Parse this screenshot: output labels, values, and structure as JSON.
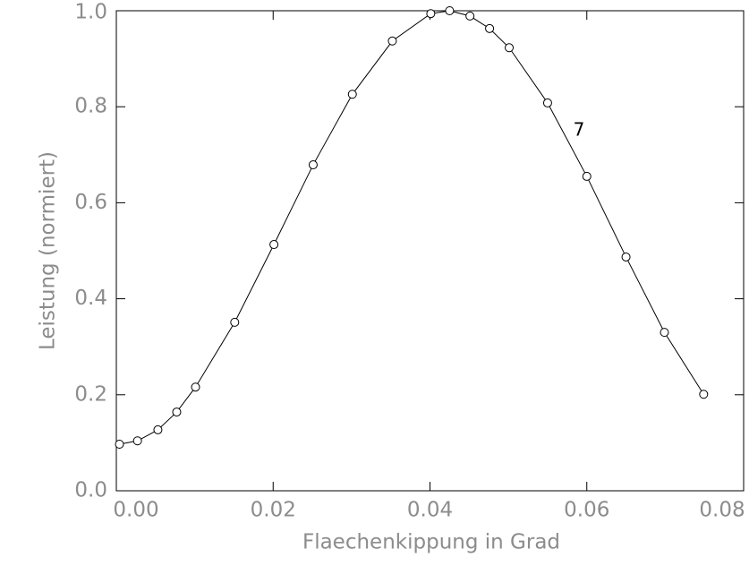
{
  "chart_data": {
    "type": "line",
    "xlabel": "Flaechenkippung in Grad",
    "ylabel": "Leistung (normiert)",
    "annotation": "7",
    "xlim": [
      0,
      0.08
    ],
    "ylim": [
      0,
      1
    ],
    "xticks": [
      {
        "value": 0,
        "label": "0.00"
      },
      {
        "value": 0.02,
        "label": "0.02"
      },
      {
        "value": 0.04,
        "label": "0.04"
      },
      {
        "value": 0.06,
        "label": "0.06"
      },
      {
        "value": 0.08,
        "label": "0.08"
      }
    ],
    "yticks": [
      {
        "value": 0,
        "label": "0.0"
      },
      {
        "value": 0.2,
        "label": "0.2"
      },
      {
        "value": 0.4,
        "label": "0.4"
      },
      {
        "value": 0.6,
        "label": "0.6"
      },
      {
        "value": 0.8,
        "label": "0.8"
      },
      {
        "value": 1,
        "label": "1.0"
      }
    ],
    "color": "#000000",
    "x": [
      0.0004,
      0.0027,
      0.0053,
      0.0077,
      0.0101,
      0.0151,
      0.0201,
      0.0251,
      0.0301,
      0.0352,
      0.0401,
      0.0425,
      0.0451,
      0.0476,
      0.0501,
      0.055,
      0.06,
      0.065,
      0.0699,
      0.0749
    ],
    "values": [
      0.097,
      0.104,
      0.127,
      0.164,
      0.216,
      0.351,
      0.513,
      0.679,
      0.826,
      0.937,
      0.994,
      1.0,
      0.989,
      0.963,
      0.923,
      0.808,
      0.655,
      0.487,
      0.33,
      0.201
    ]
  }
}
